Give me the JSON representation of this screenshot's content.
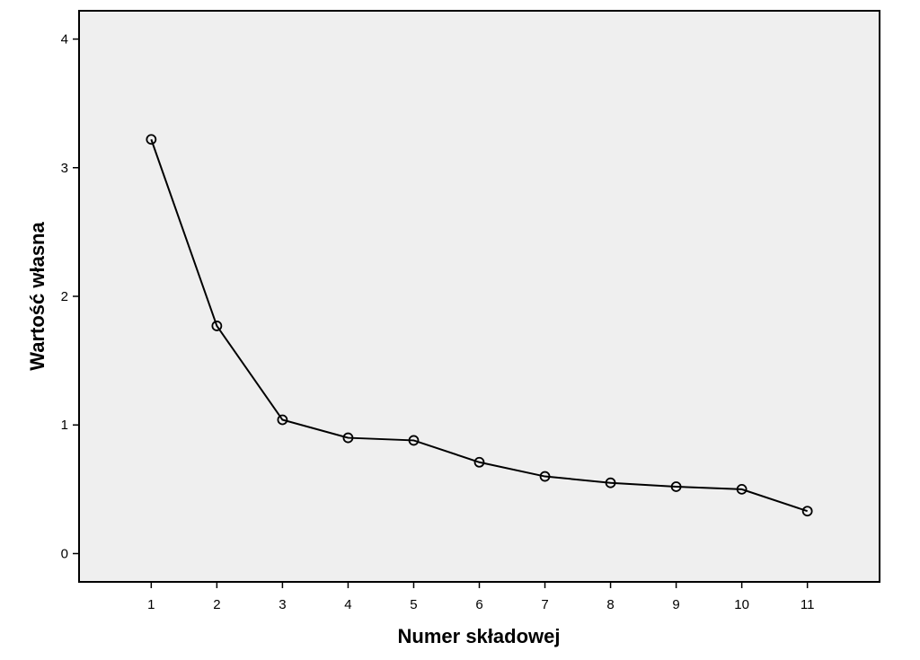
{
  "chart_data": {
    "type": "line",
    "xlabel": "Numer składowej",
    "ylabel": "Wartość własna",
    "x": [
      1,
      2,
      3,
      4,
      5,
      6,
      7,
      8,
      9,
      10,
      11
    ],
    "x_tick_labels": [
      "1",
      "2",
      "3",
      "4",
      "5",
      "6",
      "7",
      "8",
      "9",
      "10",
      "11"
    ],
    "y_ticks": [
      0,
      1,
      2,
      3,
      4
    ],
    "y_tick_labels": [
      "0",
      "1",
      "2",
      "3",
      "4"
    ],
    "ylim": [
      -0.22,
      4.22
    ],
    "xlim": [
      -0.1,
      12.1
    ],
    "series": [
      {
        "values": [
          3.22,
          1.77,
          1.04,
          0.9,
          0.88,
          0.71,
          0.6,
          0.55,
          0.52,
          0.5,
          0.33
        ],
        "marker": "open-circle"
      }
    ],
    "grid": false,
    "legend": "none",
    "colors": {
      "plot_background": "#efefef",
      "line": "#000000",
      "frame": "#000000"
    }
  }
}
